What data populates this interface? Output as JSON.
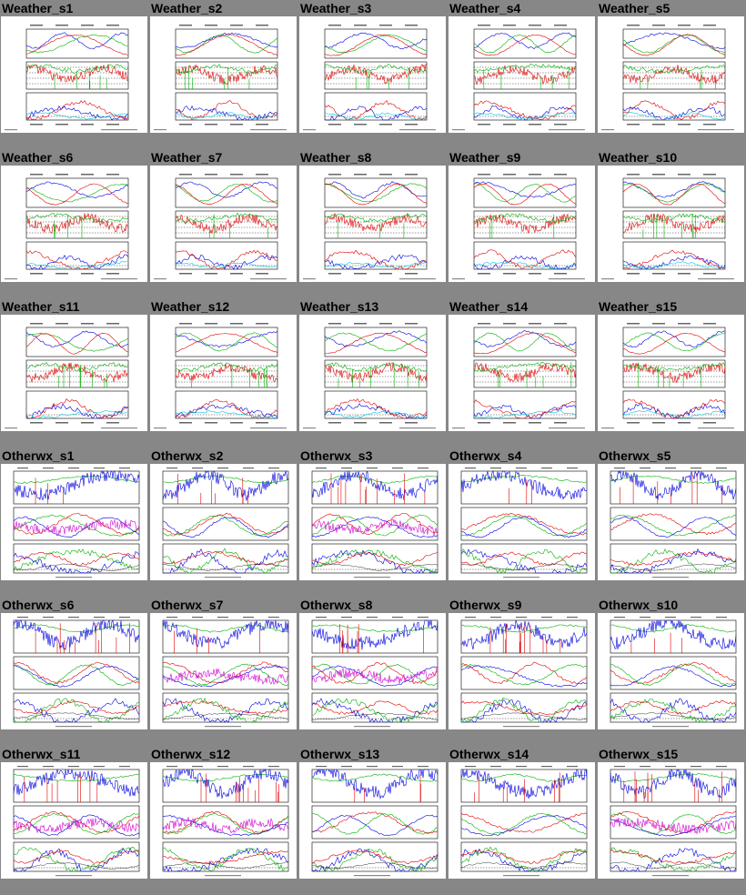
{
  "tiles": [
    {
      "label": "Weather_s1",
      "type": "weather"
    },
    {
      "label": "Weather_s2",
      "type": "weather"
    },
    {
      "label": "Weather_s3",
      "type": "weather"
    },
    {
      "label": "Weather_s4",
      "type": "weather"
    },
    {
      "label": "Weather_s5",
      "type": "weather"
    },
    {
      "label": "Weather_s6",
      "type": "weather"
    },
    {
      "label": "Weather_s7",
      "type": "weather"
    },
    {
      "label": "Weather_s8",
      "type": "weather"
    },
    {
      "label": "Weather_s9",
      "type": "weather"
    },
    {
      "label": "Weather_s10",
      "type": "weather"
    },
    {
      "label": "Weather_s11",
      "type": "weather"
    },
    {
      "label": "Weather_s12",
      "type": "weather"
    },
    {
      "label": "Weather_s13",
      "type": "weather"
    },
    {
      "label": "Weather_s14",
      "type": "weather"
    },
    {
      "label": "Weather_s15",
      "type": "weather"
    },
    {
      "label": "Otherwx_s1",
      "type": "otherwx"
    },
    {
      "label": "Otherwx_s2",
      "type": "otherwx"
    },
    {
      "label": "Otherwx_s3",
      "type": "otherwx"
    },
    {
      "label": "Otherwx_s4",
      "type": "otherwx"
    },
    {
      "label": "Otherwx_s5",
      "type": "otherwx"
    },
    {
      "label": "Otherwx_s6",
      "type": "otherwx"
    },
    {
      "label": "Otherwx_s7",
      "type": "otherwx"
    },
    {
      "label": "Otherwx_s8",
      "type": "otherwx"
    },
    {
      "label": "Otherwx_s9",
      "type": "otherwx"
    },
    {
      "label": "Otherwx_s10",
      "type": "otherwx"
    },
    {
      "label": "Otherwx_s11",
      "type": "otherwx"
    },
    {
      "label": "Otherwx_s12",
      "type": "otherwx"
    },
    {
      "label": "Otherwx_s13",
      "type": "otherwx"
    },
    {
      "label": "Otherwx_s14",
      "type": "otherwx"
    },
    {
      "label": "Otherwx_s15",
      "type": "otherwx"
    }
  ],
  "colors": {
    "background": "#878787",
    "thumb_bg": "#ffffff",
    "red": "#e00000",
    "green": "#00b000",
    "blue": "#0000e0",
    "cyan": "#00c8e0",
    "magenta": "#d000d0",
    "black": "#000000"
  }
}
